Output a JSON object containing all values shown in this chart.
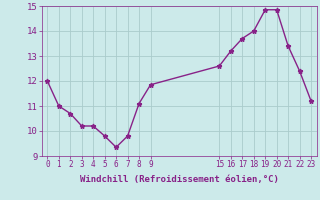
{
  "x": [
    0,
    1,
    2,
    3,
    4,
    5,
    6,
    7,
    8,
    9,
    15,
    16,
    17,
    18,
    19,
    20,
    21,
    22,
    23
  ],
  "y": [
    12.0,
    11.0,
    10.7,
    10.2,
    10.2,
    9.8,
    9.35,
    9.8,
    11.1,
    11.85,
    12.6,
    13.2,
    13.7,
    14.0,
    14.85,
    14.85,
    13.4,
    12.4,
    11.2
  ],
  "line_color": "#882288",
  "marker": "*",
  "bg_color": "#cceaea",
  "grid_color": "#aacccc",
  "xlabel": "Windchill (Refroidissement éolien,°C)",
  "xlabel_color": "#882288",
  "tick_color": "#882288",
  "ylim": [
    9,
    15
  ],
  "xlim": [
    -0.5,
    23.5
  ],
  "xticks": [
    0,
    1,
    2,
    3,
    4,
    5,
    6,
    7,
    8,
    9,
    15,
    16,
    17,
    18,
    19,
    20,
    21,
    22,
    23
  ],
  "yticks": [
    9,
    10,
    11,
    12,
    13,
    14,
    15
  ],
  "linewidth": 1.0,
  "markersize": 3.5
}
